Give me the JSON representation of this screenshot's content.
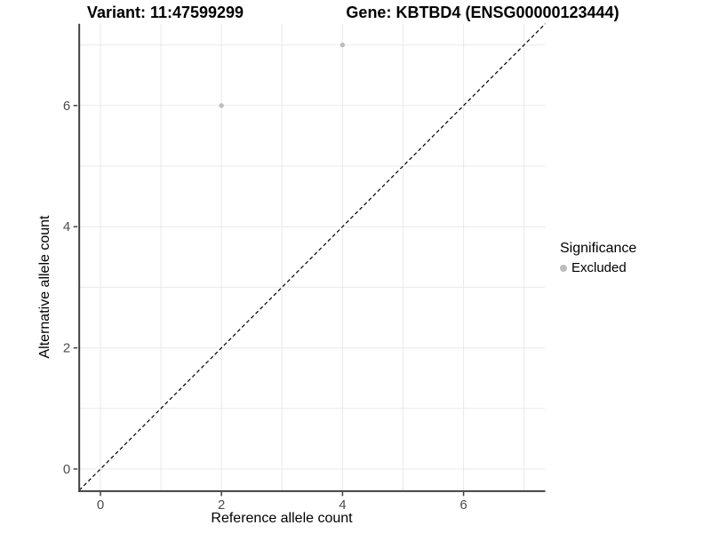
{
  "header": {
    "variant_title": "Variant: 11:47599299",
    "gene_title": "Gene: KBTBD4 (ENSG00000123444)"
  },
  "chart_data": {
    "type": "scatter",
    "xlabel": "Reference allele count",
    "ylabel": "Alternative allele count",
    "xlim": [
      -0.35,
      7.35
    ],
    "ylim": [
      -0.35,
      7.35
    ],
    "x_ticks": [
      0,
      2,
      4,
      6
    ],
    "y_ticks": [
      0,
      2,
      4,
      6
    ],
    "x_minor_ticks": [
      1,
      3,
      5,
      7
    ],
    "y_minor_ticks": [
      1,
      3,
      5,
      7
    ],
    "grid": true,
    "series": [
      {
        "name": "Excluded",
        "color": "#bdbdbd",
        "points": [
          {
            "x": 2,
            "y": 6
          },
          {
            "x": 4,
            "y": 7
          }
        ]
      }
    ],
    "reference_line": {
      "kind": "identity",
      "slope": 1,
      "intercept": 0,
      "style": "dashed",
      "color": "#000000"
    },
    "legend": {
      "title": "Significance",
      "position": "right",
      "entries": [
        {
          "label": "Excluded",
          "color": "#bdbdbd"
        }
      ]
    }
  },
  "style": {
    "grid_color": "#e9e9e9",
    "axis_color": "#404040",
    "tick_label_color": "#4d4d4d",
    "point_color": "#bdbdbd",
    "background": "#ffffff"
  }
}
